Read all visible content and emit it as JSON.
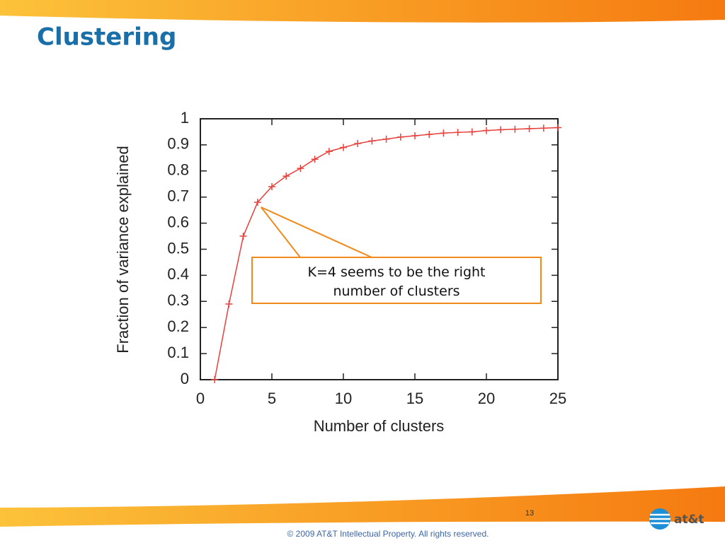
{
  "slide": {
    "title": "Clustering",
    "page_number": 13,
    "footer": "© 2009 AT&T Intellectual Property. All rights reserved.",
    "logo": "at&t"
  },
  "chart_data": {
    "type": "line",
    "xlabel": "Number of clusters",
    "ylabel": "Fraction of variance explained",
    "x": [
      1,
      2,
      3,
      4,
      5,
      6,
      7,
      8,
      9,
      10,
      11,
      12,
      13,
      14,
      15,
      16,
      17,
      18,
      19,
      20,
      21,
      22,
      23,
      24,
      25
    ],
    "series": [
      {
        "name": "Fraction of variance explained",
        "color": "#e8413c",
        "values": [
          0,
          0.29,
          0.55,
          0.68,
          0.74,
          0.78,
          0.81,
          0.845,
          0.875,
          0.89,
          0.905,
          0.915,
          0.922,
          0.93,
          0.935,
          0.94,
          0.945,
          0.948,
          0.95,
          0.955,
          0.958,
          0.96,
          0.962,
          0.964,
          0.966
        ]
      }
    ],
    "xlim": [
      0,
      25
    ],
    "xticks": [
      0,
      5,
      10,
      15,
      20,
      25
    ],
    "ylim": [
      0,
      1
    ],
    "yticks": [
      0,
      0.1,
      0.2,
      0.3,
      0.4,
      0.5,
      0.6,
      0.7,
      0.8,
      0.9,
      1
    ],
    "annotation": "K=4 seems to be the right number of clusters"
  }
}
